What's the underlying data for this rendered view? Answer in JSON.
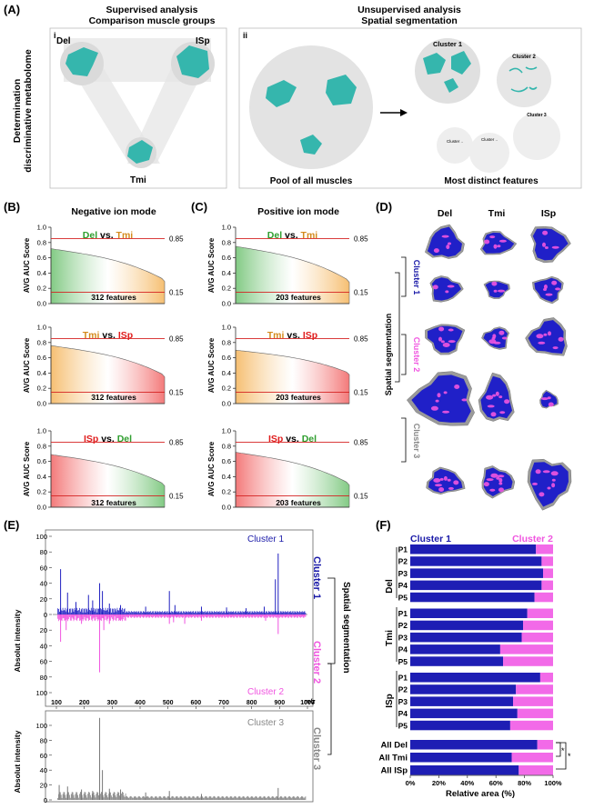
{
  "panels": {
    "A": {
      "label": "(A)",
      "left_title_1": "Supervised analysis",
      "left_title_2": "Comparison muscle groups",
      "right_title_1": "Unsupervised analysis",
      "right_title_2": "Spatial segmentation",
      "vertical_1": "Determination",
      "vertical_2": "discriminative metabolome",
      "sub_i": "i",
      "sub_ii": "ii",
      "del": "Del",
      "isp": "ISp",
      "tmi": "Tmi",
      "pool_caption": "Pool of all muscles",
      "distinct_caption": "Most distinct features",
      "cluster1": "Cluster 1",
      "cluster2": "Cluster 2",
      "cluster3": "Cluster 3",
      "cluster_dot": "Cluster ..",
      "cluster_dot2": "Cluster .."
    },
    "B": {
      "label": "(B)",
      "title": "Negative ion mode",
      "features": "312 features"
    },
    "C": {
      "label": "(C)",
      "title": "Positive ion mode",
      "features": "203 features"
    },
    "D": {
      "label": "(D)",
      "col_del": "Del",
      "col_tmi": "Tmi",
      "col_isp": "ISp",
      "cluster1": "Cluster 1",
      "cluster2": "Cluster 2",
      "cluster3": "Cluster 3",
      "spatial": "Spatial segmentation"
    },
    "E": {
      "label": "(E)",
      "ylabel": "Absolut intensity",
      "ylabel2": "Absolut intensity",
      "cluster1": "Cluster 1",
      "cluster2": "Cluster 2",
      "cluster3": "Cluster 3",
      "side_c1": "Cluster 1",
      "side_c2": "Cluster 2",
      "side_c3": "Cluster 3",
      "spatial": "Spatial segmentation",
      "mz": "m/z"
    },
    "F": {
      "label": "(F)",
      "cluster1": "Cluster 1",
      "cluster2": "Cluster 2",
      "xlabel": "Relative area (%)",
      "star1": "*",
      "star2": "*",
      "group_del": "Del",
      "group_tmi": "Tmi",
      "group_isp": "ISp"
    }
  },
  "auc": {
    "ylabel": "AVG AUC Score",
    "yticks": [
      "0.0",
      "0.2",
      "0.4",
      "0.6",
      "0.8",
      "1.0"
    ],
    "upper": "0.85",
    "lower": "0.15",
    "vs": "vs.",
    "rows": [
      {
        "a": "Del",
        "b": "Tmi"
      },
      {
        "a": "Tmi",
        "b": "ISp"
      },
      {
        "a": "ISp",
        "b": "Del"
      }
    ],
    "colors": {
      "Del": "#2e9e2e",
      "Tmi": "#d48a1c",
      "ISp": "#e01d1d"
    },
    "fills": {
      "Del": "#74c476",
      "Tmi": "#f5b862",
      "ISp": "#f26a6a"
    }
  },
  "chart_data": [
    {
      "type": "area",
      "panel": "B",
      "comparison": "Del vs. Tmi",
      "n_features": 312,
      "xlabel": "312 features",
      "ylabel": "AVG AUC Score",
      "ylim": [
        0,
        1.0
      ],
      "start": 0.72,
      "end": 0.31,
      "thresholds": [
        0.85,
        0.15
      ]
    },
    {
      "type": "area",
      "panel": "B",
      "comparison": "Tmi vs. ISp",
      "n_features": 312,
      "ylim": [
        0,
        1.0
      ],
      "start": 0.76,
      "end": 0.37,
      "thresholds": [
        0.85,
        0.15
      ]
    },
    {
      "type": "area",
      "panel": "B",
      "comparison": "ISp vs. Del",
      "n_features": 312,
      "ylim": [
        0,
        1.0
      ],
      "start": 0.69,
      "end": 0.3,
      "thresholds": [
        0.85,
        0.15
      ]
    },
    {
      "type": "area",
      "panel": "C",
      "comparison": "Del vs. Tmi",
      "n_features": 203,
      "ylim": [
        0,
        1.0
      ],
      "start": 0.75,
      "end": 0.3,
      "thresholds": [
        0.85,
        0.15
      ]
    },
    {
      "type": "area",
      "panel": "C",
      "comparison": "Tmi vs. ISp",
      "n_features": 203,
      "ylim": [
        0,
        1.0
      ],
      "start": 0.7,
      "end": 0.4,
      "thresholds": [
        0.85,
        0.15
      ]
    },
    {
      "type": "area",
      "panel": "C",
      "comparison": "ISp vs. Del",
      "n_features": 203,
      "ylim": [
        0,
        1.0
      ],
      "start": 0.72,
      "end": 0.31,
      "thresholds": [
        0.85,
        0.15
      ]
    },
    {
      "type": "bar",
      "panel": "F",
      "orientation": "horizontal-stacked",
      "categories": [
        "P1",
        "P2",
        "P3",
        "P4",
        "P5",
        "P1",
        "P2",
        "P3",
        "P4",
        "P5",
        "P1",
        "P2",
        "P3",
        "P4",
        "P5",
        "All Del",
        "All Tmi",
        "All ISp"
      ],
      "series": [
        {
          "name": "Cluster 1",
          "values": [
            88,
            92,
            93,
            92,
            87,
            82,
            79,
            78,
            63,
            65,
            91,
            74,
            72,
            75,
            70,
            89,
            71,
            76
          ]
        },
        {
          "name": "Cluster 2",
          "values": [
            12,
            8,
            7,
            8,
            13,
            18,
            21,
            22,
            37,
            35,
            9,
            26,
            28,
            25,
            30,
            11,
            29,
            24
          ]
        }
      ],
      "xlabel": "Relative area (%)",
      "xticks": [
        "0%",
        "20%",
        "40%",
        "60%",
        "80%",
        "100%"
      ],
      "xlim": [
        0,
        100
      ]
    },
    {
      "type": "line",
      "panel": "E",
      "xlabel": "m/z",
      "ylabel": "Absolut intensity",
      "xlim": [
        100,
        1000
      ],
      "ylim": [
        0,
        100
      ],
      "xticks": [
        "100",
        "200",
        "300",
        "400",
        "500",
        "600",
        "700",
        "800",
        "900",
        "1000"
      ],
      "yticks": [
        "0",
        "20",
        "40",
        "60",
        "80",
        "100"
      ],
      "peaks_cluster1": [
        [
          115,
          58
        ],
        [
          140,
          28
        ],
        [
          170,
          16
        ],
        [
          215,
          25
        ],
        [
          230,
          18
        ],
        [
          255,
          40
        ],
        [
          265,
          30
        ],
        [
          290,
          14
        ],
        [
          330,
          12
        ],
        [
          420,
          10
        ],
        [
          505,
          30
        ],
        [
          525,
          12
        ],
        [
          620,
          10
        ],
        [
          710,
          9
        ],
        [
          780,
          8
        ],
        [
          845,
          10
        ],
        [
          885,
          45
        ],
        [
          895,
          78
        ]
      ],
      "peaks_cluster2": [
        [
          115,
          35
        ],
        [
          135,
          20
        ],
        [
          190,
          12
        ],
        [
          255,
          74
        ],
        [
          270,
          20
        ],
        [
          290,
          12
        ],
        [
          330,
          8
        ],
        [
          505,
          12
        ],
        [
          520,
          10
        ],
        [
          560,
          12
        ],
        [
          620,
          8
        ],
        [
          850,
          8
        ],
        [
          895,
          25
        ]
      ],
      "peaks_cluster3": [
        [
          110,
          20
        ],
        [
          140,
          18
        ],
        [
          190,
          14
        ],
        [
          230,
          12
        ],
        [
          255,
          110
        ],
        [
          265,
          40
        ],
        [
          290,
          15
        ],
        [
          330,
          14
        ],
        [
          420,
          10
        ],
        [
          505,
          12
        ],
        [
          620,
          8
        ],
        [
          895,
          16
        ]
      ]
    }
  ]
}
